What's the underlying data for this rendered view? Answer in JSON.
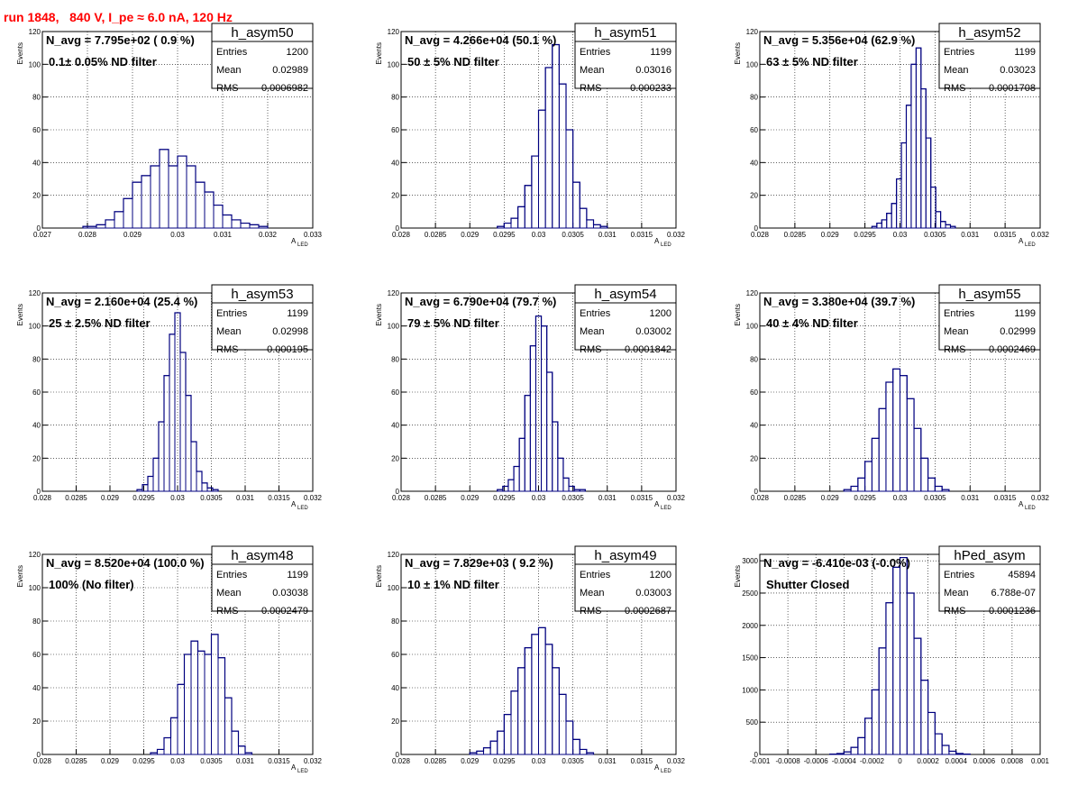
{
  "run_title": "run 1848,   840 V, I_pe ≈ 6.0 nA, 120 Hz",
  "colors": {
    "title": "#ff0000",
    "annotation": "#ff00ff",
    "histogram": "#00007f",
    "grid": "#000000"
  },
  "stat_labels": {
    "entries": "Entries",
    "mean": "Mean",
    "rms": "RMS"
  },
  "chart_data": [
    {
      "type": "bar",
      "name": "h_asym50",
      "navg": "N_avg = 7.795e+02 ( 0.9 %)",
      "note": "0.1± 0.05% ND filter",
      "stats": {
        "entries": "1200",
        "mean": "0.02989",
        "rms": "0.0006982"
      },
      "xlabel": "A",
      "xlabel_sub": "LED",
      "ylabel": "Events",
      "xlim": [
        0.027,
        0.033
      ],
      "ylim": [
        0,
        120
      ],
      "xticks": [
        "0.027",
        "0.028",
        "0.029",
        "0.03",
        "0.031",
        "0.032",
        "0.033"
      ],
      "yticks": [
        "0",
        "20",
        "40",
        "60",
        "80",
        "100",
        "120"
      ],
      "edges": [
        0.0279,
        0.0282,
        0.0284,
        0.0286,
        0.0288,
        0.029,
        0.0292,
        0.0294,
        0.0296,
        0.0298,
        0.03,
        0.0302,
        0.0304,
        0.0306,
        0.0308,
        0.031,
        0.0312,
        0.0314,
        0.0316,
        0.0318,
        0.032
      ],
      "values": [
        1,
        2,
        5,
        10,
        18,
        28,
        32,
        38,
        48,
        38,
        44,
        38,
        28,
        22,
        14,
        8,
        5,
        3,
        2,
        1
      ]
    },
    {
      "type": "bar",
      "name": "h_asym51",
      "navg": "N_avg = 4.266e+04 (50.1 %)",
      "note": "50 ± 5% ND filter",
      "stats": {
        "entries": "1199",
        "mean": "0.03016",
        "rms": "0.000233"
      },
      "xlabel": "A",
      "xlabel_sub": "LED",
      "ylabel": "Events",
      "xlim": [
        0.028,
        0.032
      ],
      "ylim": [
        0,
        120
      ],
      "xticks": [
        "0.028",
        "0.0285",
        "0.029",
        "0.0295",
        "0.03",
        "0.0305",
        "0.031",
        "0.0315",
        "0.032"
      ],
      "yticks": [
        "0",
        "20",
        "40",
        "60",
        "80",
        "100",
        "120"
      ],
      "edges": [
        0.0294,
        0.0295,
        0.0296,
        0.0297,
        0.0298,
        0.0299,
        0.03,
        0.0301,
        0.0302,
        0.0303,
        0.0304,
        0.0305,
        0.0306,
        0.0307,
        0.0308,
        0.0309,
        0.031
      ],
      "values": [
        1,
        3,
        6,
        13,
        26,
        44,
        72,
        98,
        112,
        88,
        60,
        28,
        12,
        5,
        2,
        1
      ]
    },
    {
      "type": "bar",
      "name": "h_asym52",
      "navg": "N_avg = 5.356e+04 (62.9 %)",
      "note": "63 ± 5% ND filter",
      "stats": {
        "entries": "1199",
        "mean": "0.03023",
        "rms": "0.0001708"
      },
      "xlabel": "A",
      "xlabel_sub": "LED",
      "ylabel": "Events",
      "xlim": [
        0.028,
        0.032
      ],
      "ylim": [
        0,
        120
      ],
      "xticks": [
        "0.028",
        "0.0285",
        "0.029",
        "0.0295",
        "0.03",
        "0.0305",
        "0.031",
        "0.0315",
        "0.032"
      ],
      "yticks": [
        "0",
        "20",
        "40",
        "60",
        "80",
        "100",
        "120"
      ],
      "edges": [
        0.0296,
        0.02967,
        0.02974,
        0.02981,
        0.02988,
        0.02995,
        0.03002,
        0.03009,
        0.03016,
        0.03023,
        0.0303,
        0.03037,
        0.03044,
        0.03051,
        0.03058,
        0.03065,
        0.03072,
        0.03079
      ],
      "values": [
        1,
        3,
        5,
        9,
        15,
        30,
        52,
        75,
        100,
        110,
        85,
        55,
        25,
        10,
        4,
        2,
        1
      ]
    },
    {
      "type": "bar",
      "name": "h_asym53",
      "navg": "N_avg = 2.160e+04 (25.4 %)",
      "note": "25 ± 2.5% ND filter",
      "stats": {
        "entries": "1199",
        "mean": "0.02998",
        "rms": "0.000195"
      },
      "xlabel": "A",
      "xlabel_sub": "LED",
      "ylabel": "Events",
      "xlim": [
        0.028,
        0.032
      ],
      "ylim": [
        0,
        120
      ],
      "xticks": [
        "0.028",
        "0.0285",
        "0.029",
        "0.0295",
        "0.03",
        "0.0305",
        "0.031",
        "0.0315",
        "0.032"
      ],
      "yticks": [
        "0",
        "20",
        "40",
        "60",
        "80",
        "100",
        "120"
      ],
      "edges": [
        0.0294,
        0.02948,
        0.02956,
        0.02964,
        0.02972,
        0.0298,
        0.02988,
        0.02996,
        0.03004,
        0.03012,
        0.0302,
        0.03028,
        0.03036,
        0.03044,
        0.03052,
        0.0306
      ],
      "values": [
        1,
        4,
        9,
        20,
        42,
        70,
        95,
        108,
        84,
        58,
        30,
        12,
        5,
        2,
        1
      ]
    },
    {
      "type": "bar",
      "name": "h_asym54",
      "navg": "N_avg = 6.790e+04 (79.7 %)",
      "note": "79 ± 5% ND filter",
      "stats": {
        "entries": "1200",
        "mean": "0.03002",
        "rms": "0.0001842"
      },
      "xlabel": "A",
      "xlabel_sub": "LED",
      "ylabel": "Events",
      "xlim": [
        0.028,
        0.032
      ],
      "ylim": [
        0,
        120
      ],
      "xticks": [
        "0.028",
        "0.0285",
        "0.029",
        "0.0295",
        "0.03",
        "0.0305",
        "0.031",
        "0.0315",
        "0.032"
      ],
      "yticks": [
        "0",
        "20",
        "40",
        "60",
        "80",
        "100",
        "120"
      ],
      "edges": [
        0.0294,
        0.02948,
        0.02956,
        0.02964,
        0.02972,
        0.0298,
        0.02988,
        0.02996,
        0.03004,
        0.03012,
        0.0302,
        0.03028,
        0.03036,
        0.03044,
        0.03052,
        0.0306,
        0.03068
      ],
      "values": [
        1,
        3,
        7,
        15,
        32,
        58,
        88,
        106,
        100,
        72,
        42,
        20,
        8,
        3,
        1,
        1
      ]
    },
    {
      "type": "bar",
      "name": "h_asym55",
      "navg": "N_avg = 3.380e+04 (39.7 %)",
      "note": "40 ± 4% ND filter",
      "stats": {
        "entries": "1199",
        "mean": "0.02999",
        "rms": "0.0002469"
      },
      "xlabel": "A",
      "xlabel_sub": "LED",
      "ylabel": "Events",
      "xlim": [
        0.028,
        0.032
      ],
      "ylim": [
        0,
        120
      ],
      "xticks": [
        "0.028",
        "0.0285",
        "0.029",
        "0.0295",
        "0.03",
        "0.0305",
        "0.031",
        "0.0315",
        "0.032"
      ],
      "yticks": [
        "0",
        "20",
        "40",
        "60",
        "80",
        "100",
        "120"
      ],
      "edges": [
        0.0292,
        0.0293,
        0.0294,
        0.0295,
        0.0296,
        0.0297,
        0.0298,
        0.0299,
        0.03,
        0.0301,
        0.0302,
        0.0303,
        0.0304,
        0.0305,
        0.0306,
        0.0307
      ],
      "values": [
        1,
        3,
        8,
        18,
        32,
        50,
        66,
        74,
        70,
        56,
        38,
        20,
        8,
        3,
        1
      ]
    },
    {
      "type": "bar",
      "name": "h_asym48",
      "navg": "N_avg = 8.520e+04 (100.0 %)",
      "note": "100% (No filter)",
      "stats": {
        "entries": "1199",
        "mean": "0.03038",
        "rms": "0.0002479"
      },
      "xlabel": "A",
      "xlabel_sub": "LED",
      "ylabel": "Events",
      "xlim": [
        0.028,
        0.032
      ],
      "ylim": [
        0,
        120
      ],
      "xticks": [
        "0.028",
        "0.0285",
        "0.029",
        "0.0295",
        "0.03",
        "0.0305",
        "0.031",
        "0.0315",
        "0.032"
      ],
      "yticks": [
        "0",
        "20",
        "40",
        "60",
        "80",
        "100",
        "120"
      ],
      "edges": [
        0.0296,
        0.0297,
        0.0298,
        0.0299,
        0.03,
        0.0301,
        0.0302,
        0.0303,
        0.0304,
        0.0305,
        0.0306,
        0.0307,
        0.0308,
        0.0309,
        0.031,
        0.0311
      ],
      "values": [
        1,
        3,
        10,
        22,
        42,
        60,
        68,
        62,
        60,
        72,
        58,
        34,
        14,
        5,
        1
      ]
    },
    {
      "type": "bar",
      "name": "h_asym49",
      "navg": "N_avg = 7.829e+03 ( 9.2 %)",
      "note": "10 ± 1% ND filter",
      "stats": {
        "entries": "1200",
        "mean": "0.03003",
        "rms": "0.0002687"
      },
      "xlabel": "A",
      "xlabel_sub": "LED",
      "ylabel": "Events",
      "xlim": [
        0.028,
        0.032
      ],
      "ylim": [
        0,
        120
      ],
      "xticks": [
        "0.028",
        "0.0285",
        "0.029",
        "0.0295",
        "0.03",
        "0.0305",
        "0.031",
        "0.0315",
        "0.032"
      ],
      "yticks": [
        "0",
        "20",
        "40",
        "60",
        "80",
        "100",
        "120"
      ],
      "edges": [
        0.029,
        0.0291,
        0.0292,
        0.0293,
        0.0294,
        0.0295,
        0.0296,
        0.0297,
        0.0298,
        0.0299,
        0.03,
        0.0301,
        0.0302,
        0.0303,
        0.0304,
        0.0305,
        0.0306,
        0.0307,
        0.0308
      ],
      "values": [
        1,
        2,
        4,
        8,
        14,
        24,
        38,
        52,
        64,
        72,
        76,
        66,
        52,
        36,
        20,
        9,
        3,
        1
      ]
    },
    {
      "type": "bar",
      "name": "hPed_asym",
      "navg": "N_avg = -6.410e-03 (-0.0%)",
      "note": "Shutter Closed",
      "stats": {
        "entries": "45894",
        "mean": "6.788e-07",
        "rms": "0.0001236"
      },
      "xlabel": "",
      "xlabel_sub": "",
      "ylabel": "Events",
      "xlim": [
        -0.001,
        0.001
      ],
      "ylim": [
        0,
        3100
      ],
      "xticks": [
        "-0.001",
        "-0.0008",
        "-0.0006",
        "-0.0004",
        "-0.0002",
        "0",
        "0.0002",
        "0.0004",
        "0.0006",
        "0.0008",
        "0.001"
      ],
      "yticks": [
        "0",
        "500",
        "1000",
        "1500",
        "2000",
        "2500",
        "3000"
      ],
      "edges": [
        -0.0005,
        -0.00045,
        -0.0004,
        -0.00035,
        -0.0003,
        -0.00025,
        -0.0002,
        -0.00015,
        -0.0001,
        -5e-05,
        0.0,
        5e-05,
        0.0001,
        0.00015,
        0.0002,
        0.00025,
        0.0003,
        0.00035,
        0.0004,
        0.00045,
        0.0005
      ],
      "values": [
        5,
        15,
        40,
        110,
        260,
        560,
        1000,
        1650,
        2350,
        2900,
        3050,
        2500,
        1800,
        1150,
        650,
        320,
        140,
        50,
        15,
        5
      ]
    }
  ]
}
